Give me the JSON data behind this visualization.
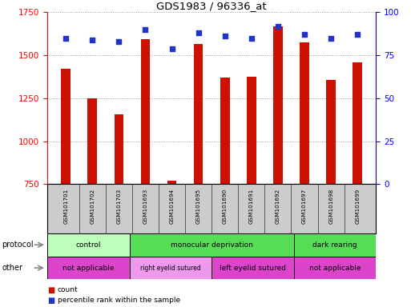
{
  "title": "GDS1983 / 96336_at",
  "samples": [
    "GSM101701",
    "GSM101702",
    "GSM101703",
    "GSM101693",
    "GSM101694",
    "GSM101695",
    "GSM101690",
    "GSM101691",
    "GSM101692",
    "GSM101697",
    "GSM101698",
    "GSM101699"
  ],
  "counts": [
    1420,
    1250,
    1155,
    1595,
    770,
    1565,
    1370,
    1375,
    1670,
    1575,
    1355,
    1460
  ],
  "percentile_ranks": [
    85,
    84,
    83,
    90,
    79,
    88,
    86,
    85,
    92,
    87,
    85,
    87
  ],
  "ylim_left": [
    750,
    1750
  ],
  "ylim_right": [
    0,
    100
  ],
  "yticks_left": [
    750,
    1000,
    1250,
    1500,
    1750
  ],
  "yticks_right": [
    0,
    25,
    50,
    75,
    100
  ],
  "bar_color": "#cc1100",
  "dot_color": "#2233cc",
  "protocol_groups": [
    {
      "label": "control",
      "start": 0,
      "end": 3,
      "color": "#bbffbb"
    },
    {
      "label": "monocular deprivation",
      "start": 3,
      "end": 9,
      "color": "#55dd55"
    },
    {
      "label": "dark rearing",
      "start": 9,
      "end": 12,
      "color": "#55dd55"
    }
  ],
  "other_groups": [
    {
      "label": "not applicable",
      "start": 0,
      "end": 3,
      "color": "#dd44cc"
    },
    {
      "label": "right eyelid sutured",
      "start": 3,
      "end": 6,
      "color": "#ee99ee"
    },
    {
      "label": "left eyelid sutured",
      "start": 6,
      "end": 9,
      "color": "#dd44cc"
    },
    {
      "label": "not applicable",
      "start": 9,
      "end": 12,
      "color": "#dd44cc"
    }
  ],
  "background_color": "#ffffff",
  "grid_color": "#888888",
  "label_bg_color": "#cccccc"
}
